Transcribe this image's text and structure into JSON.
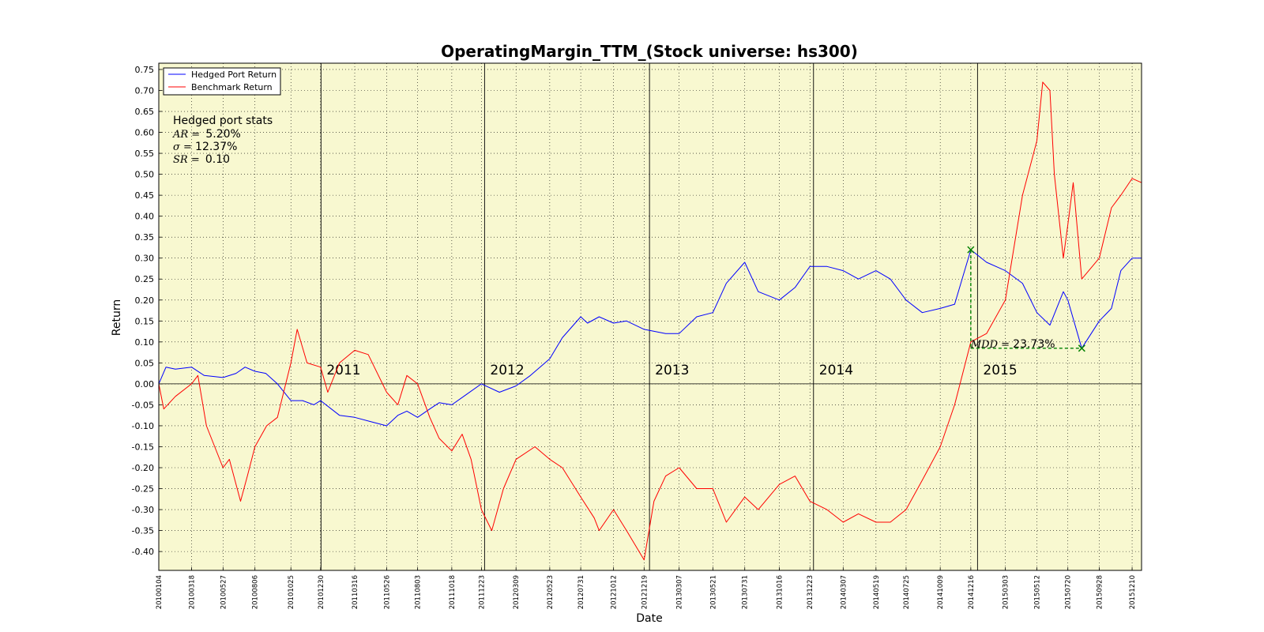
{
  "chart_data": {
    "type": "line",
    "title": "OperatingMargin_TTM_(Stock universe: hs300)",
    "xlabel": "Date",
    "ylabel": "Return",
    "ylim": [
      -0.445,
      0.765
    ],
    "yticks": [
      "0.75",
      "0.70",
      "0.65",
      "0.60",
      "0.55",
      "0.50",
      "0.45",
      "0.40",
      "0.35",
      "0.30",
      "0.25",
      "0.20",
      "0.15",
      "0.10",
      "0.05",
      "0.00",
      "-0.05",
      "-0.10",
      "-0.15",
      "-0.20",
      "-0.25",
      "-0.30",
      "-0.35",
      "-0.40"
    ],
    "xticks": [
      "20100104",
      "20100318",
      "20100527",
      "20100806",
      "20101025",
      "20101230",
      "20110316",
      "20110526",
      "20110803",
      "20111018",
      "20111223",
      "20120309",
      "20120523",
      "20120731",
      "20121012",
      "20121219",
      "20130307",
      "20130521",
      "20130731",
      "20131016",
      "20131223",
      "20140307",
      "20140519",
      "20140725",
      "20141009",
      "20141216",
      "20150303",
      "20150512",
      "20150720",
      "20150928",
      "20151210"
    ],
    "xlim": [
      "20100104",
      "20151231"
    ],
    "grid": true,
    "background": "#f8f8d0",
    "legend_position": "upper-left",
    "year_markers": [
      {
        "label": "2011",
        "date": "20101231"
      },
      {
        "label": "2012",
        "date": "20111230"
      },
      {
        "label": "2013",
        "date": "20121231"
      },
      {
        "label": "2014",
        "date": "20131231"
      },
      {
        "label": "2015",
        "date": "20141231"
      }
    ],
    "series": [
      {
        "name": "Hedged Port Return",
        "color": "#0000ff",
        "points": [
          [
            "20100104",
            0.0
          ],
          [
            "20100120",
            0.04
          ],
          [
            "20100210",
            0.035
          ],
          [
            "20100318",
            0.04
          ],
          [
            "20100415",
            0.02
          ],
          [
            "20100527",
            0.015
          ],
          [
            "20100625",
            0.025
          ],
          [
            "20100715",
            0.04
          ],
          [
            "20100806",
            0.03
          ],
          [
            "20100830",
            0.025
          ],
          [
            "20100925",
            0.0
          ],
          [
            "20101025",
            -0.04
          ],
          [
            "20101120",
            -0.04
          ],
          [
            "20101215",
            -0.05
          ],
          [
            "20101230",
            -0.04
          ],
          [
            "20110210",
            -0.075
          ],
          [
            "20110316",
            -0.08
          ],
          [
            "20110420",
            -0.09
          ],
          [
            "20110526",
            -0.1
          ],
          [
            "20110620",
            -0.075
          ],
          [
            "20110710",
            -0.065
          ],
          [
            "20110803",
            -0.08
          ],
          [
            "20110830",
            -0.06
          ],
          [
            "20110920",
            -0.045
          ],
          [
            "20111018",
            -0.05
          ],
          [
            "20111120",
            -0.025
          ],
          [
            "20111223",
            0.0
          ],
          [
            "20120201",
            -0.02
          ],
          [
            "20120309",
            -0.005
          ],
          [
            "20120410",
            0.02
          ],
          [
            "20120523",
            0.06
          ],
          [
            "20120620",
            0.11
          ],
          [
            "20120731",
            0.16
          ],
          [
            "20120815",
            0.145
          ],
          [
            "20120910",
            0.16
          ],
          [
            "20121012",
            0.145
          ],
          [
            "20121110",
            0.15
          ],
          [
            "20121219",
            0.13
          ],
          [
            "20130205",
            0.12
          ],
          [
            "20130307",
            0.12
          ],
          [
            "20130415",
            0.16
          ],
          [
            "20130521",
            0.17
          ],
          [
            "20130620",
            0.24
          ],
          [
            "20130731",
            0.29
          ],
          [
            "20130830",
            0.22
          ],
          [
            "20131016",
            0.2
          ],
          [
            "20131120",
            0.23
          ],
          [
            "20131223",
            0.28
          ],
          [
            "20140130",
            0.28
          ],
          [
            "20140307",
            0.27
          ],
          [
            "20140410",
            0.25
          ],
          [
            "20140519",
            0.27
          ],
          [
            "20140620",
            0.25
          ],
          [
            "20140725",
            0.2
          ],
          [
            "20140830",
            0.17
          ],
          [
            "20141009",
            0.18
          ],
          [
            "20141110",
            0.19
          ],
          [
            "20141216",
            0.32
          ],
          [
            "20150120",
            0.29
          ],
          [
            "20150303",
            0.27
          ],
          [
            "20150410",
            0.24
          ],
          [
            "20150512",
            0.17
          ],
          [
            "20150610",
            0.14
          ],
          [
            "20150710",
            0.22
          ],
          [
            "20150720",
            0.2
          ],
          [
            "20150820",
            0.085
          ],
          [
            "20150928",
            0.15
          ],
          [
            "20151025",
            0.18
          ],
          [
            "20151115",
            0.27
          ],
          [
            "20151210",
            0.3
          ],
          [
            "20151231",
            0.3
          ]
        ]
      },
      {
        "name": "Benchmark Return",
        "color": "#ff0000",
        "points": [
          [
            "20100104",
            0.0
          ],
          [
            "20100115",
            -0.06
          ],
          [
            "20100210",
            -0.03
          ],
          [
            "20100318",
            0.0
          ],
          [
            "20100401",
            0.02
          ],
          [
            "20100420",
            -0.1
          ],
          [
            "20100527",
            -0.2
          ],
          [
            "20100610",
            -0.18
          ],
          [
            "20100705",
            -0.28
          ],
          [
            "20100720",
            -0.22
          ],
          [
            "20100806",
            -0.15
          ],
          [
            "20100901",
            -0.1
          ],
          [
            "20100925",
            -0.08
          ],
          [
            "20101025",
            0.05
          ],
          [
            "20101108",
            0.13
          ],
          [
            "20101130",
            0.05
          ],
          [
            "20101230",
            0.04
          ],
          [
            "20110115",
            -0.02
          ],
          [
            "20110210",
            0.05
          ],
          [
            "20110316",
            0.08
          ],
          [
            "20110415",
            0.07
          ],
          [
            "20110526",
            -0.02
          ],
          [
            "20110620",
            -0.05
          ],
          [
            "20110710",
            0.02
          ],
          [
            "20110803",
            0.0
          ],
          [
            "20110830",
            -0.08
          ],
          [
            "20110920",
            -0.13
          ],
          [
            "20111018",
            -0.16
          ],
          [
            "20111110",
            -0.12
          ],
          [
            "20111130",
            -0.18
          ],
          [
            "20111223",
            -0.3
          ],
          [
            "20120115",
            -0.35
          ],
          [
            "20120210",
            -0.25
          ],
          [
            "20120309",
            -0.18
          ],
          [
            "20120420",
            -0.15
          ],
          [
            "20120523",
            -0.18
          ],
          [
            "20120620",
            -0.2
          ],
          [
            "20120731",
            -0.27
          ],
          [
            "20120830",
            -0.32
          ],
          [
            "20120910",
            -0.35
          ],
          [
            "20121012",
            -0.3
          ],
          [
            "20121110",
            -0.35
          ],
          [
            "20121219",
            -0.42
          ],
          [
            "20130110",
            -0.28
          ],
          [
            "20130205",
            -0.22
          ],
          [
            "20130307",
            -0.2
          ],
          [
            "20130415",
            -0.25
          ],
          [
            "20130521",
            -0.25
          ],
          [
            "20130620",
            -0.33
          ],
          [
            "20130731",
            -0.27
          ],
          [
            "20130830",
            -0.3
          ],
          [
            "20131016",
            -0.24
          ],
          [
            "20131120",
            -0.22
          ],
          [
            "20131223",
            -0.28
          ],
          [
            "20140130",
            -0.3
          ],
          [
            "20140307",
            -0.33
          ],
          [
            "20140410",
            -0.31
          ],
          [
            "20140519",
            -0.33
          ],
          [
            "20140620",
            -0.33
          ],
          [
            "20140725",
            -0.3
          ],
          [
            "20140830",
            -0.23
          ],
          [
            "20141009",
            -0.15
          ],
          [
            "20141110",
            -0.05
          ],
          [
            "20141216",
            0.1
          ],
          [
            "20150120",
            0.12
          ],
          [
            "20150303",
            0.2
          ],
          [
            "20150410",
            0.45
          ],
          [
            "20150512",
            0.58
          ],
          [
            "20150525",
            0.72
          ],
          [
            "20150610",
            0.7
          ],
          [
            "20150620",
            0.5
          ],
          [
            "20150710",
            0.3
          ],
          [
            "20150720",
            0.38
          ],
          [
            "20150801",
            0.48
          ],
          [
            "20150820",
            0.25
          ],
          [
            "20150928",
            0.3
          ],
          [
            "20151025",
            0.42
          ],
          [
            "20151115",
            0.45
          ],
          [
            "20151210",
            0.49
          ],
          [
            "20151231",
            0.48
          ]
        ]
      }
    ],
    "mdd": {
      "peak": {
        "date": "20141216",
        "value": 0.32
      },
      "trough": {
        "date": "20150820",
        "value": 0.085
      },
      "label_prefix": "MDD = ",
      "label_value": "23.73%",
      "color": "#008000"
    }
  },
  "legend": {
    "series_1": "Hedged Port Return",
    "series_2": "Benchmark Return"
  },
  "stats": {
    "header": "Hedged port stats",
    "ar_prefix": "AR = ",
    "ar_value": "5.20%",
    "sigma_prefix": "σ = ",
    "sigma_value": "12.37%",
    "sr_prefix": "SR = ",
    "sr_value": "0.10"
  }
}
